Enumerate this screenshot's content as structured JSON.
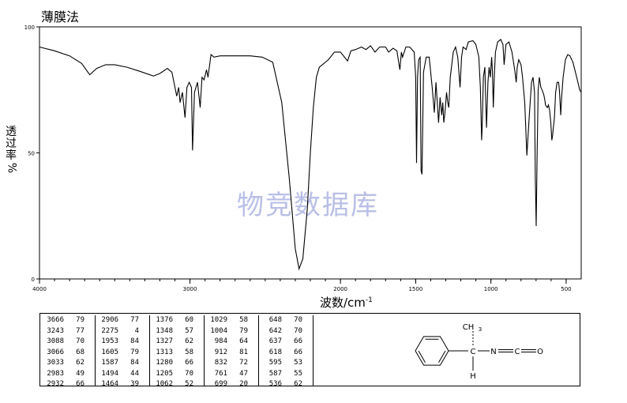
{
  "header": {
    "method": "薄膜法"
  },
  "watermark": "物竞数据库",
  "chart_data": {
    "type": "line",
    "title": "",
    "xlabel": "波数/cm",
    "xlabel_superscript": "-1",
    "ylabel": [
      "透",
      "过",
      "率",
      "%"
    ],
    "xlim": [
      4000,
      400
    ],
    "ylim": [
      0,
      100
    ],
    "x_ticks": [
      4000,
      3000,
      2000,
      1500,
      1000,
      500
    ],
    "x_tick_labels": [
      "4000",
      "3000",
      "2000",
      "1500",
      "1000",
      "500"
    ],
    "y_ticks": [
      0,
      50,
      100
    ],
    "y_tick_labels": [
      "0",
      "50",
      "100"
    ],
    "grid": false,
    "series": [
      {
        "color": "#000000",
        "points": [
          [
            4000,
            92
          ],
          [
            3900,
            90.5
          ],
          [
            3800,
            88.5
          ],
          [
            3720,
            85.5
          ],
          [
            3666,
            81
          ],
          [
            3620,
            83.5
          ],
          [
            3560,
            85
          ],
          [
            3500,
            85
          ],
          [
            3420,
            84
          ],
          [
            3340,
            82.5
          ],
          [
            3243,
            80.5
          ],
          [
            3200,
            81.5
          ],
          [
            3150,
            83.5
          ],
          [
            3120,
            82
          ],
          [
            3088,
            72.5
          ],
          [
            3075,
            76
          ],
          [
            3066,
            70
          ],
          [
            3050,
            74
          ],
          [
            3033,
            64
          ],
          [
            3020,
            76
          ],
          [
            3005,
            78
          ],
          [
            2990,
            76
          ],
          [
            2983,
            51
          ],
          [
            2970,
            74
          ],
          [
            2950,
            78
          ],
          [
            2932,
            68
          ],
          [
            2920,
            80
          ],
          [
            2906,
            79
          ],
          [
            2890,
            83
          ],
          [
            2880,
            80
          ],
          [
            2860,
            89
          ],
          [
            2840,
            88
          ],
          [
            2800,
            88.5
          ],
          [
            2700,
            88.5
          ],
          [
            2600,
            88.5
          ],
          [
            2520,
            88
          ],
          [
            2450,
            86
          ],
          [
            2390,
            70
          ],
          [
            2340,
            40
          ],
          [
            2300,
            12
          ],
          [
            2275,
            4
          ],
          [
            2250,
            8
          ],
          [
            2220,
            28
          ],
          [
            2200,
            50
          ],
          [
            2180,
            68
          ],
          [
            2160,
            80
          ],
          [
            2140,
            84
          ],
          [
            2120,
            85
          ],
          [
            2080,
            87
          ],
          [
            2040,
            90
          ],
          [
            2000,
            90
          ],
          [
            1953,
            86.5
          ],
          [
            1930,
            90.5
          ],
          [
            1900,
            91
          ],
          [
            1860,
            92
          ],
          [
            1830,
            91
          ],
          [
            1800,
            92.5
          ],
          [
            1770,
            90
          ],
          [
            1740,
            92
          ],
          [
            1700,
            92
          ],
          [
            1680,
            90
          ],
          [
            1650,
            91.5
          ],
          [
            1625,
            90.5
          ],
          [
            1605,
            83
          ],
          [
            1595,
            90
          ],
          [
            1587,
            88
          ],
          [
            1565,
            92
          ],
          [
            1540,
            92
          ],
          [
            1510,
            90
          ],
          [
            1500,
            80
          ],
          [
            1494,
            46
          ],
          [
            1488,
            80
          ],
          [
            1480,
            87
          ],
          [
            1470,
            88
          ],
          [
            1464,
            43
          ],
          [
            1458,
            41.5
          ],
          [
            1448,
            82
          ],
          [
            1430,
            88
          ],
          [
            1410,
            88
          ],
          [
            1390,
            76
          ],
          [
            1376,
            66
          ],
          [
            1365,
            78
          ],
          [
            1348,
            62
          ],
          [
            1338,
            72
          ],
          [
            1327,
            65
          ],
          [
            1320,
            70
          ],
          [
            1313,
            62
          ],
          [
            1305,
            66
          ],
          [
            1295,
            74
          ],
          [
            1287,
            70
          ],
          [
            1280,
            68
          ],
          [
            1270,
            80
          ],
          [
            1250,
            90
          ],
          [
            1235,
            92
          ],
          [
            1220,
            88
          ],
          [
            1205,
            76
          ],
          [
            1195,
            88
          ],
          [
            1185,
            92
          ],
          [
            1165,
            91
          ],
          [
            1150,
            94
          ],
          [
            1120,
            94.5
          ],
          [
            1100,
            93
          ],
          [
            1080,
            88
          ],
          [
            1070,
            76
          ],
          [
            1062,
            55
          ],
          [
            1058,
            60
          ],
          [
            1050,
            80
          ],
          [
            1040,
            84
          ],
          [
            1035,
            72
          ],
          [
            1029,
            60
          ],
          [
            1020,
            78
          ],
          [
            1012,
            84
          ],
          [
            1004,
            80
          ],
          [
            995,
            88
          ],
          [
            990,
            82
          ],
          [
            984,
            68
          ],
          [
            978,
            80
          ],
          [
            970,
            90
          ],
          [
            955,
            94
          ],
          [
            935,
            95
          ],
          [
            920,
            93
          ],
          [
            912,
            85
          ],
          [
            900,
            93
          ],
          [
            880,
            94
          ],
          [
            860,
            90
          ],
          [
            850,
            86
          ],
          [
            840,
            82
          ],
          [
            832,
            78
          ],
          [
            825,
            84
          ],
          [
            815,
            87
          ],
          [
            800,
            85
          ],
          [
            790,
            80
          ],
          [
            775,
            70
          ],
          [
            761,
            49
          ],
          [
            745,
            65
          ],
          [
            730,
            78
          ],
          [
            720,
            80
          ],
          [
            710,
            74
          ],
          [
            705,
            40
          ],
          [
            699,
            21
          ],
          [
            693,
            50
          ],
          [
            686,
            75
          ],
          [
            678,
            80
          ],
          [
            668,
            76
          ],
          [
            660,
            75
          ],
          [
            648,
            73
          ],
          [
            642,
            71
          ],
          [
            637,
            69
          ],
          [
            625,
            68
          ],
          [
            618,
            69
          ],
          [
            610,
            67
          ],
          [
            602,
            62
          ],
          [
            595,
            55
          ],
          [
            590,
            57
          ],
          [
            587,
            59
          ],
          [
            578,
            64
          ],
          [
            570,
            74
          ],
          [
            560,
            78
          ],
          [
            550,
            78
          ],
          [
            545,
            75
          ],
          [
            536,
            65
          ],
          [
            530,
            72
          ],
          [
            520,
            80
          ],
          [
            505,
            87
          ],
          [
            490,
            89
          ],
          [
            475,
            88.5
          ],
          [
            455,
            86
          ],
          [
            430,
            80
          ],
          [
            410,
            75
          ],
          [
            400,
            74
          ]
        ]
      }
    ],
    "peak_table": {
      "columns": [
        [
          [
            "3666",
            "79"
          ],
          [
            "3243",
            "77"
          ],
          [
            "3088",
            "70"
          ],
          [
            "3066",
            "68"
          ],
          [
            "3033",
            "62"
          ],
          [
            "2983",
            "49"
          ],
          [
            "2932",
            "66"
          ]
        ],
        [
          [
            "2906",
            "77"
          ],
          [
            "2275",
            "4"
          ],
          [
            "1953",
            "84"
          ],
          [
            "1605",
            "79"
          ],
          [
            "1587",
            "84"
          ],
          [
            "1494",
            "44"
          ],
          [
            "1464",
            "39"
          ]
        ],
        [
          [
            "1376",
            "60"
          ],
          [
            "1348",
            "57"
          ],
          [
            "1327",
            "62"
          ],
          [
            "1313",
            "58"
          ],
          [
            "1280",
            "66"
          ],
          [
            "1205",
            "70"
          ],
          [
            "1062",
            "52"
          ]
        ],
        [
          [
            "1029",
            "58"
          ],
          [
            "1004",
            "79"
          ],
          [
            "984",
            "64"
          ],
          [
            "912",
            "81"
          ],
          [
            "832",
            "72"
          ],
          [
            "761",
            "47"
          ],
          [
            "699",
            "20"
          ]
        ],
        [
          [
            "648",
            "70"
          ],
          [
            "642",
            "70"
          ],
          [
            "637",
            "66"
          ],
          [
            "618",
            "66"
          ],
          [
            "595",
            "53"
          ],
          [
            "587",
            "55"
          ],
          [
            "536",
            "62"
          ]
        ]
      ]
    }
  },
  "structure": {
    "labels": [
      "CH",
      "3",
      "C",
      "N",
      "C",
      "O",
      "H"
    ]
  }
}
